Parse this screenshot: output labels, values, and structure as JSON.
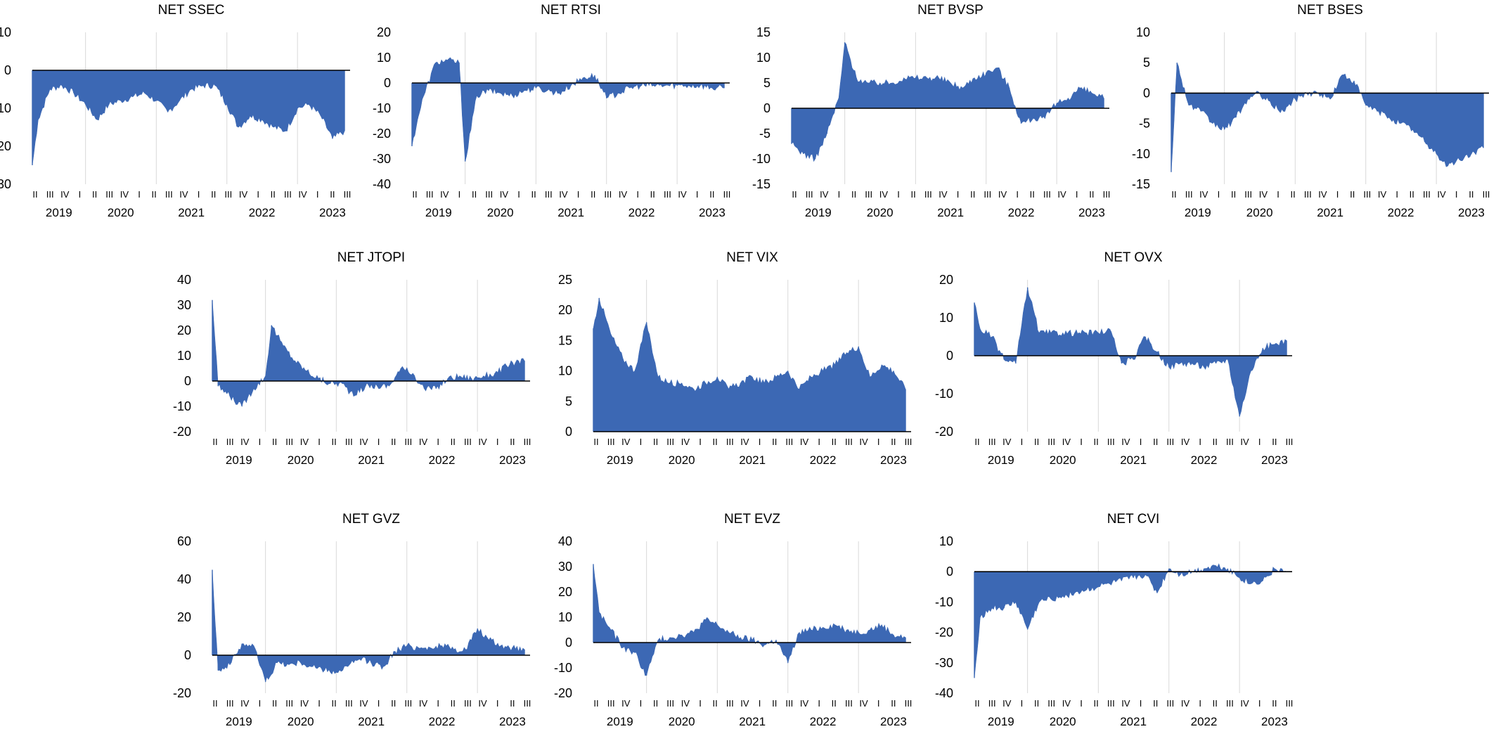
{
  "figure": {
    "series_color": "#3c68b4",
    "quarter_labels": [
      "II",
      "III",
      "IV",
      "I",
      "II",
      "III",
      "IV",
      "I",
      "II",
      "III",
      "IV",
      "I",
      "II",
      "III",
      "IV",
      "I",
      "II",
      "III",
      "IV",
      "I",
      "II",
      "III"
    ],
    "year_labels": [
      "2019",
      "2020",
      "2021",
      "2022",
      "2023"
    ]
  },
  "chart_data": [
    {
      "type": "area",
      "title": "NET SSEC",
      "xlabel": "",
      "ylabel": "",
      "ylim": [
        -30,
        10
      ],
      "yticks": [
        10,
        0,
        -10,
        -20,
        -30
      ],
      "grid": "vertical gridlines at year starts",
      "x": [
        "2019-04",
        "2019-05",
        "2019-07",
        "2019-09",
        "2019-11",
        "2020-01",
        "2020-03",
        "2020-05",
        "2020-07",
        "2020-09",
        "2020-11",
        "2021-01",
        "2021-03",
        "2021-05",
        "2021-07",
        "2021-09",
        "2021-11",
        "2022-01",
        "2022-03",
        "2022-05",
        "2022-07",
        "2022-09",
        "2022-11",
        "2023-01",
        "2023-03",
        "2023-05",
        "2023-07",
        "2023-09"
      ],
      "values": [
        -25,
        -13,
        -5,
        -4,
        -6,
        -9,
        -13,
        -9,
        -8,
        -7,
        -6,
        -8,
        -11,
        -8,
        -5,
        -4,
        -4,
        -9,
        -15,
        -12,
        -13,
        -15,
        -16,
        -10,
        -9,
        -12,
        -18,
        -16
      ]
    },
    {
      "type": "area",
      "title": "NET RTSI",
      "xlabel": "",
      "ylabel": "",
      "ylim": [
        -40,
        20
      ],
      "yticks": [
        20,
        10,
        0,
        -10,
        -20,
        -30,
        -40
      ],
      "grid": "vertical gridlines at year starts",
      "x": [
        "2019-04",
        "2019-05",
        "2019-06",
        "2019-08",
        "2019-10",
        "2019-12",
        "2020-01",
        "2020-03",
        "2020-05",
        "2020-07",
        "2020-09",
        "2020-11",
        "2021-01",
        "2021-03",
        "2021-05",
        "2021-07",
        "2021-09",
        "2021-11",
        "2022-01",
        "2022-03",
        "2022-05",
        "2022-07",
        "2022-09",
        "2022-11",
        "2023-01",
        "2023-03",
        "2023-05",
        "2023-07",
        "2023-09"
      ],
      "values": [
        -25,
        -14,
        -5,
        8,
        9,
        8,
        -31,
        -5,
        -3,
        -4,
        -5,
        -3,
        -2,
        -3,
        -4,
        -1,
        2,
        3,
        -6,
        -4,
        -2,
        -1,
        -1,
        -1,
        -1,
        -1,
        -1,
        -2,
        -2
      ]
    },
    {
      "type": "area",
      "title": "NET BVSP",
      "xlabel": "",
      "ylabel": "",
      "ylim": [
        -15,
        15
      ],
      "yticks": [
        15,
        10,
        5,
        0,
        -5,
        -10,
        -15
      ],
      "grid": "vertical gridlines at year starts",
      "x": [
        "2019-04",
        "2019-06",
        "2019-08",
        "2019-10",
        "2019-12",
        "2020-01",
        "2020-03",
        "2020-05",
        "2020-07",
        "2020-09",
        "2020-11",
        "2021-01",
        "2021-03",
        "2021-05",
        "2021-07",
        "2021-09",
        "2021-11",
        "2022-01",
        "2022-03",
        "2022-05",
        "2022-07",
        "2022-09",
        "2022-11",
        "2023-01",
        "2023-03",
        "2023-05",
        "2023-07",
        "2023-09"
      ],
      "values": [
        -7,
        -9,
        -10,
        -5,
        2,
        13,
        6,
        5,
        5,
        5,
        6,
        6,
        6,
        6,
        5,
        4,
        6,
        7,
        8,
        4,
        -3,
        -2,
        -2,
        1,
        2,
        4,
        3,
        2
      ]
    },
    {
      "type": "area",
      "title": "NET BSES",
      "xlabel": "",
      "ylabel": "",
      "ylim": [
        -15,
        10
      ],
      "yticks": [
        10,
        5,
        0,
        -5,
        -10,
        -15
      ],
      "grid": "vertical gridlines at year starts",
      "x": [
        "2019-04",
        "2019-05",
        "2019-07",
        "2019-09",
        "2019-11",
        "2020-01",
        "2020-03",
        "2020-05",
        "2020-07",
        "2020-09",
        "2020-11",
        "2021-01",
        "2021-03",
        "2021-05",
        "2021-07",
        "2021-09",
        "2021-11",
        "2022-01",
        "2022-03",
        "2022-05",
        "2022-07",
        "2022-09",
        "2022-11",
        "2023-01",
        "2023-03",
        "2023-05",
        "2023-07",
        "2023-09"
      ],
      "values": [
        -13,
        5,
        -2,
        -3,
        -5,
        -6,
        -4,
        -1,
        0,
        -2,
        -3,
        -1,
        0,
        0,
        -1,
        3,
        2,
        -2,
        -3,
        -4,
        -5,
        -6,
        -8,
        -10,
        -12,
        -11,
        -10,
        -9
      ]
    },
    {
      "type": "area",
      "title": "NET JTOPI",
      "xlabel": "",
      "ylabel": "",
      "ylim": [
        -20,
        40
      ],
      "yticks": [
        40,
        30,
        20,
        10,
        0,
        -10,
        -20
      ],
      "grid": "vertical gridlines at year starts",
      "x": [
        "2019-04",
        "2019-05",
        "2019-07",
        "2019-09",
        "2019-11",
        "2020-01",
        "2020-02",
        "2020-04",
        "2020-06",
        "2020-08",
        "2020-10",
        "2020-12",
        "2021-02",
        "2021-04",
        "2021-06",
        "2021-08",
        "2021-10",
        "2021-12",
        "2022-02",
        "2022-04",
        "2022-06",
        "2022-08",
        "2022-10",
        "2022-12",
        "2023-02",
        "2023-04",
        "2023-06",
        "2023-08",
        "2023-09"
      ],
      "values": [
        32,
        -2,
        -6,
        -10,
        -3,
        2,
        22,
        14,
        8,
        4,
        1,
        -1,
        -1,
        -6,
        -2,
        -2,
        -2,
        5,
        3,
        -3,
        -3,
        1,
        2,
        1,
        2,
        3,
        6,
        8,
        8
      ]
    },
    {
      "type": "area",
      "title": "NET VIX",
      "xlabel": "",
      "ylabel": "",
      "ylim": [
        0,
        25
      ],
      "yticks": [
        25,
        20,
        15,
        10,
        5,
        0
      ],
      "grid": "vertical gridlines at year starts",
      "x": [
        "2019-04",
        "2019-05",
        "2019-07",
        "2019-09",
        "2019-11",
        "2020-01",
        "2020-03",
        "2020-05",
        "2020-07",
        "2020-09",
        "2020-11",
        "2021-01",
        "2021-03",
        "2021-05",
        "2021-07",
        "2021-09",
        "2021-11",
        "2022-01",
        "2022-03",
        "2022-05",
        "2022-07",
        "2022-09",
        "2022-11",
        "2023-01",
        "2023-03",
        "2023-05",
        "2023-07",
        "2023-09"
      ],
      "values": [
        17,
        22,
        16,
        12,
        10,
        18,
        9,
        8,
        8,
        7,
        8,
        9,
        7,
        8,
        9,
        8,
        9,
        10,
        7,
        9,
        10,
        11,
        13,
        14,
        9,
        11,
        10,
        7
      ]
    },
    {
      "type": "area",
      "title": "NET OVX",
      "xlabel": "",
      "ylabel": "",
      "ylim": [
        -20,
        20
      ],
      "yticks": [
        20,
        10,
        0,
        -10,
        -20
      ],
      "grid": "vertical gridlines at year starts",
      "x": [
        "2019-04",
        "2019-05",
        "2019-07",
        "2019-09",
        "2019-11",
        "2020-01",
        "2020-03",
        "2020-05",
        "2020-07",
        "2020-09",
        "2020-11",
        "2021-01",
        "2021-03",
        "2021-05",
        "2021-07",
        "2021-09",
        "2021-11",
        "2022-01",
        "2022-03",
        "2022-05",
        "2022-07",
        "2022-09",
        "2022-11",
        "2023-01",
        "2023-03",
        "2023-05",
        "2023-07",
        "2023-09"
      ],
      "values": [
        14,
        7,
        5,
        -1,
        -2,
        18,
        6,
        6,
        6,
        6,
        6,
        6,
        7,
        -2,
        -1,
        5,
        1,
        -3,
        -2,
        -2,
        -3,
        -2,
        -1,
        -16,
        -4,
        2,
        3,
        4
      ]
    },
    {
      "type": "area",
      "title": "NET GVZ",
      "xlabel": "",
      "ylabel": "",
      "ylim": [
        -20,
        60
      ],
      "yticks": [
        60,
        40,
        20,
        0,
        -20
      ],
      "grid": "vertical gridlines at year starts",
      "x": [
        "2019-04",
        "2019-05",
        "2019-07",
        "2019-09",
        "2019-11",
        "2020-01",
        "2020-03",
        "2020-05",
        "2020-07",
        "2020-09",
        "2020-11",
        "2021-01",
        "2021-03",
        "2021-05",
        "2021-07",
        "2021-09",
        "2021-11",
        "2022-01",
        "2022-03",
        "2022-05",
        "2022-07",
        "2022-09",
        "2022-11",
        "2023-01",
        "2023-03",
        "2023-05",
        "2023-07",
        "2023-09"
      ],
      "values": [
        45,
        -8,
        -5,
        6,
        5,
        -14,
        -4,
        -5,
        -4,
        -6,
        -8,
        -9,
        -6,
        -2,
        -4,
        -6,
        2,
        5,
        4,
        4,
        5,
        3,
        3,
        14,
        8,
        5,
        4,
        3
      ]
    },
    {
      "type": "area",
      "title": "NET EVZ",
      "xlabel": "",
      "ylabel": "",
      "ylim": [
        -20,
        40
      ],
      "yticks": [
        40,
        30,
        20,
        10,
        0,
        -10,
        -20
      ],
      "grid": "vertical gridlines at year starts",
      "x": [
        "2019-04",
        "2019-05",
        "2019-07",
        "2019-09",
        "2019-11",
        "2020-01",
        "2020-03",
        "2020-05",
        "2020-07",
        "2020-09",
        "2020-11",
        "2021-01",
        "2021-03",
        "2021-05",
        "2021-07",
        "2021-09",
        "2021-11",
        "2022-01",
        "2022-03",
        "2022-05",
        "2022-07",
        "2022-09",
        "2022-11",
        "2023-01",
        "2023-03",
        "2023-05",
        "2023-07",
        "2023-09"
      ],
      "values": [
        31,
        12,
        5,
        -2,
        -4,
        -13,
        1,
        2,
        3,
        4,
        9,
        7,
        4,
        2,
        1,
        -1,
        1,
        -8,
        4,
        5,
        6,
        7,
        5,
        4,
        5,
        7,
        3,
        2
      ]
    },
    {
      "type": "area",
      "title": "NET CVI",
      "xlabel": "",
      "ylabel": "",
      "ylim": [
        -40,
        10
      ],
      "yticks": [
        10,
        0,
        -10,
        -20,
        -30,
        -40
      ],
      "grid": "vertical gridlines at year starts",
      "x": [
        "2019-04",
        "2019-05",
        "2019-07",
        "2019-09",
        "2019-11",
        "2020-01",
        "2020-03",
        "2020-05",
        "2020-07",
        "2020-09",
        "2020-11",
        "2021-01",
        "2021-03",
        "2021-05",
        "2021-07",
        "2021-09",
        "2021-11",
        "2022-01",
        "2022-03",
        "2022-05",
        "2022-07",
        "2022-09",
        "2022-11",
        "2023-01",
        "2023-03",
        "2023-05",
        "2023-07",
        "2023-09"
      ],
      "values": [
        -35,
        -15,
        -12,
        -12,
        -10,
        -19,
        -10,
        -9,
        -8,
        -7,
        -6,
        -5,
        -4,
        -3,
        -2,
        -1,
        -7,
        1,
        -1,
        0,
        1,
        2,
        1,
        -2,
        -4,
        -3,
        1,
        0
      ]
    }
  ]
}
